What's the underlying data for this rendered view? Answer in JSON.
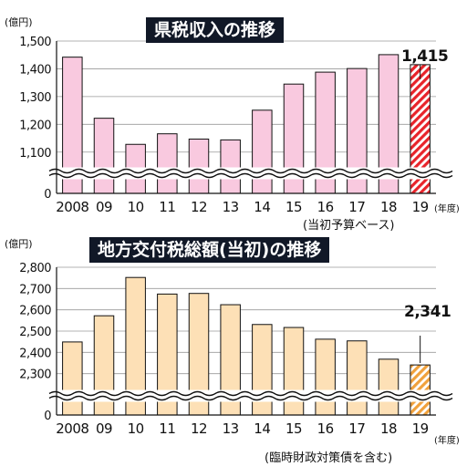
{
  "chart_data": [
    {
      "type": "bar",
      "title": "県税収入の推移",
      "unit": "(億円)",
      "categories": [
        "2008",
        "09",
        "10",
        "11",
        "12",
        "13",
        "14",
        "15",
        "16",
        "17",
        "18",
        "19"
      ],
      "x_unit": "(年度)",
      "note": "(当初予算ベース)",
      "values": [
        1442,
        1222,
        1128,
        1166,
        1147,
        1144,
        1251,
        1345,
        1388,
        1401,
        1451,
        1415
      ],
      "ylim": [
        1050,
        1500
      ],
      "yticks": [
        0,
        1100,
        1200,
        1300,
        1400,
        1500
      ],
      "ytick_labels": [
        "0",
        "1,100",
        "1,200",
        "1,300",
        "1,400",
        "1,500"
      ],
      "axis_break": true,
      "highlight_index": 11,
      "highlight_label": "1,415",
      "colors": {
        "bar": "#f9c9df",
        "highlight": "#e8232a",
        "highlight_stripe": "#ffffff",
        "edge": "#111111"
      }
    },
    {
      "type": "bar",
      "title": "地方交付税総額(当初)の推移",
      "unit": "(億円)",
      "categories": [
        "2008",
        "09",
        "10",
        "11",
        "12",
        "13",
        "14",
        "15",
        "16",
        "17",
        "18",
        "19"
      ],
      "x_unit": "(年度)",
      "note": "(臨時財政対策債を含む)",
      "values": [
        2449,
        2572,
        2752,
        2674,
        2677,
        2624,
        2531,
        2517,
        2462,
        2454,
        2368,
        2341
      ],
      "ylim": [
        2230,
        2800
      ],
      "yticks": [
        0,
        2300,
        2400,
        2500,
        2600,
        2700,
        2800
      ],
      "ytick_labels": [
        "0",
        "2,300",
        "2,400",
        "2,500",
        "2,600",
        "2,700",
        "2,800"
      ],
      "axis_break": true,
      "highlight_index": 11,
      "highlight_label": "2,341",
      "colors": {
        "bar": "#fde0b6",
        "highlight": "#f0a13c",
        "highlight_stripe": "#ffffff",
        "edge": "#111111"
      }
    }
  ]
}
